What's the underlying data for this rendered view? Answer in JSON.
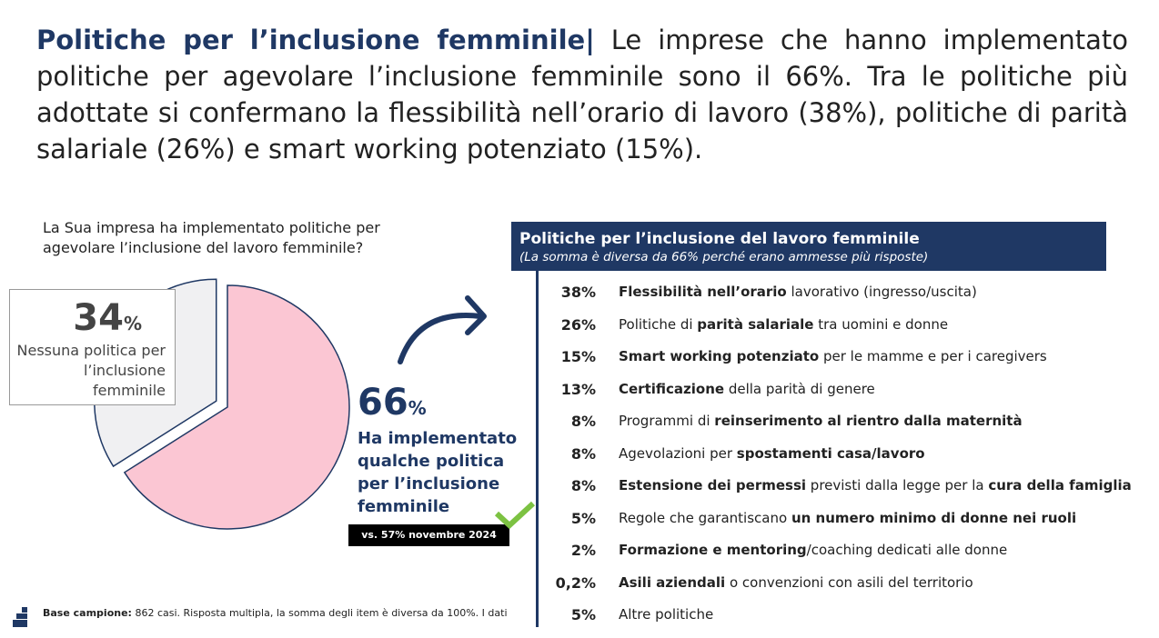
{
  "header": {
    "title": "Politiche per l’inclusione femminile",
    "separator": "|",
    "text": "Le imprese che hanno implementato politiche per agevolare l’inclusione femminile sono il 66%. Tra le politiche più adottate si confermano la flessibilità nell’orario di lavoro (38%), politiche di parità salariale (26%) e smart working potenziato (15%)."
  },
  "chart_data": {
    "type": "pie",
    "question": "La Sua impresa ha implementato politiche per agevolare l’inclusione del lavoro femminile?",
    "categories": [
      "Nessuna politica per l’inclusione femminile",
      "Ha implementato qualche politica per l’inclusione femminile"
    ],
    "values": [
      34,
      66
    ],
    "unit": "%",
    "colors": [
      "#f0f0f2",
      "#fbc6d3"
    ],
    "comparison": "vs. 57% novembre 2024"
  },
  "table": {
    "title": "Politiche per  l’inclusione del lavoro femminile",
    "subtitle": "(La somma è diversa da 66% perché erano ammesse più risposte)",
    "rows": [
      {
        "value": "38%",
        "parts": [
          {
            "text": "Flessibilità nell’orario",
            "bold": true
          },
          {
            "text": " lavorativo (ingresso/uscita)",
            "bold": false
          }
        ]
      },
      {
        "value": "26%",
        "parts": [
          {
            "text": "Politiche di ",
            "bold": false
          },
          {
            "text": "parità salariale",
            "bold": true
          },
          {
            "text": " tra uomini e donne",
            "bold": false
          }
        ]
      },
      {
        "value": "15%",
        "parts": [
          {
            "text": "Smart working potenziato",
            "bold": true
          },
          {
            "text": " per le mamme e per i caregivers",
            "bold": false
          }
        ]
      },
      {
        "value": "13%",
        "parts": [
          {
            "text": "Certificazione",
            "bold": true
          },
          {
            "text": " della parità di genere",
            "bold": false
          }
        ]
      },
      {
        "value": "8%",
        "parts": [
          {
            "text": "Programmi di ",
            "bold": false
          },
          {
            "text": "reinserimento al rientro dalla maternità",
            "bold": true
          }
        ]
      },
      {
        "value": "8%",
        "parts": [
          {
            "text": "Agevolazioni per ",
            "bold": false
          },
          {
            "text": "spostamenti casa/lavoro",
            "bold": true
          }
        ]
      },
      {
        "value": "8%",
        "parts": [
          {
            "text": "Estensione dei permessi",
            "bold": true
          },
          {
            "text": " previsti dalla legge per la ",
            "bold": false
          },
          {
            "text": "cura della famiglia",
            "bold": true
          }
        ]
      },
      {
        "value": "5%",
        "parts": [
          {
            "text": "Regole che garantiscano ",
            "bold": false
          },
          {
            "text": "un numero minimo di donne nei ruoli",
            "bold": true
          }
        ]
      },
      {
        "value": "2%",
        "parts": [
          {
            "text": "Formazione e mentoring",
            "bold": true
          },
          {
            "text": "/coaching dedicati alle donne",
            "bold": false
          }
        ]
      },
      {
        "value": "0,2%",
        "parts": [
          {
            "text": "Asili aziendali",
            "bold": true
          },
          {
            "text": " o convenzioni con asili del territorio",
            "bold": false
          }
        ]
      },
      {
        "value": "5%",
        "parts": [
          {
            "text": "Altre politiche",
            "bold": false
          }
        ]
      }
    ]
  },
  "footer": {
    "label": "Base campione:",
    "text": "862 casi. Risposta multipla, la somma degli item è diversa da 100%. I dati"
  }
}
